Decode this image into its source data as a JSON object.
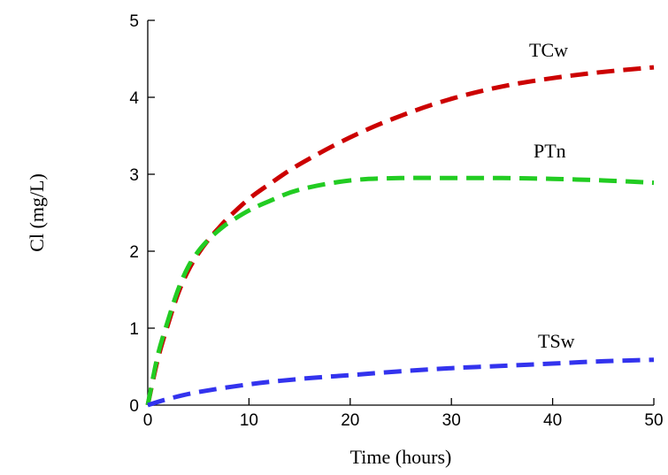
{
  "chart_data": {
    "type": "line",
    "xlabel": "Time (hours)",
    "ylabel": "Cl (mg/L)",
    "xlim": [
      0,
      50
    ],
    "ylim": [
      0,
      5
    ],
    "xticks": [
      0,
      10,
      20,
      30,
      40,
      50
    ],
    "yticks": [
      0,
      1,
      2,
      3,
      4,
      5
    ],
    "grid": false,
    "series": [
      {
        "name": "TCw",
        "color": "#cc0000",
        "x": [
          0,
          1,
          2,
          3,
          4,
          5,
          6,
          7,
          8,
          10,
          12,
          15,
          20,
          25,
          30,
          35,
          40,
          45,
          50
        ],
        "y": [
          0,
          0.6,
          1.05,
          1.45,
          1.75,
          1.97,
          2.15,
          2.3,
          2.44,
          2.68,
          2.87,
          3.13,
          3.48,
          3.76,
          3.98,
          4.14,
          4.25,
          4.33,
          4.39
        ]
      },
      {
        "name": "PTn",
        "color": "#22cc22",
        "x": [
          0,
          1,
          2,
          3,
          4,
          5,
          6,
          7,
          8,
          10,
          12,
          15,
          20,
          25,
          30,
          35,
          40,
          45,
          50
        ],
        "y": [
          0,
          0.65,
          1.1,
          1.5,
          1.8,
          2.0,
          2.15,
          2.27,
          2.37,
          2.53,
          2.65,
          2.8,
          2.92,
          2.95,
          2.95,
          2.95,
          2.94,
          2.92,
          2.89
        ]
      },
      {
        "name": "TSw",
        "color": "#3333ee",
        "x": [
          0,
          2,
          5,
          10,
          15,
          20,
          25,
          30,
          35,
          40,
          45,
          50
        ],
        "y": [
          0,
          0.08,
          0.17,
          0.27,
          0.34,
          0.39,
          0.44,
          0.48,
          0.51,
          0.54,
          0.57,
          0.59
        ]
      }
    ]
  }
}
